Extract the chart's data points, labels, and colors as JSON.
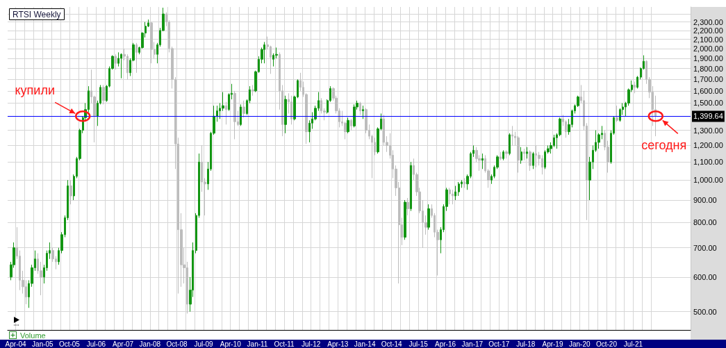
{
  "chart_data": {
    "type": "candlestick",
    "title": "RTSI Weekly",
    "log": true,
    "grid": true,
    "xlim": [
      "2004-01-10",
      "2023-02-06"
    ],
    "ylim": [
      454,
      2490
    ],
    "xticks": [
      {
        "value": "2004-04-01",
        "label": "Apr-04"
      },
      {
        "value": "2004-07-01",
        "label": null
      },
      {
        "value": "2004-10-01",
        "label": null
      },
      {
        "value": "2005-01-01",
        "label": "Jan-05"
      },
      {
        "value": "2005-04-01",
        "label": null
      },
      {
        "value": "2005-07-01",
        "label": null
      },
      {
        "value": "2005-10-01",
        "label": "Oct-05"
      },
      {
        "value": "2006-01-01",
        "label": null
      },
      {
        "value": "2006-04-01",
        "label": null
      },
      {
        "value": "2006-07-01",
        "label": "Jul-06"
      },
      {
        "value": "2006-10-01",
        "label": null
      },
      {
        "value": "2007-01-01",
        "label": null
      },
      {
        "value": "2007-04-01",
        "label": "Apr-07"
      },
      {
        "value": "2007-07-01",
        "label": null
      },
      {
        "value": "2007-10-01",
        "label": null
      },
      {
        "value": "2008-01-01",
        "label": "Jan-08"
      },
      {
        "value": "2008-04-01",
        "label": null
      },
      {
        "value": "2008-07-01",
        "label": null
      },
      {
        "value": "2008-10-01",
        "label": "Oct-08"
      },
      {
        "value": "2009-01-01",
        "label": null
      },
      {
        "value": "2009-04-01",
        "label": null
      },
      {
        "value": "2009-07-01",
        "label": "Jul-09"
      },
      {
        "value": "2009-10-01",
        "label": null
      },
      {
        "value": "2010-01-01",
        "label": null
      },
      {
        "value": "2010-04-01",
        "label": "Apr-10"
      },
      {
        "value": "2010-07-01",
        "label": null
      },
      {
        "value": "2010-10-01",
        "label": null
      },
      {
        "value": "2011-01-01",
        "label": "Jan-11"
      },
      {
        "value": "2011-04-01",
        "label": null
      },
      {
        "value": "2011-07-01",
        "label": null
      },
      {
        "value": "2011-10-01",
        "label": "Oct-11"
      },
      {
        "value": "2012-01-01",
        "label": null
      },
      {
        "value": "2012-04-01",
        "label": null
      },
      {
        "value": "2012-07-01",
        "label": "Jul-12"
      },
      {
        "value": "2012-10-01",
        "label": null
      },
      {
        "value": "2013-01-01",
        "label": null
      },
      {
        "value": "2013-04-01",
        "label": "Apr-13"
      },
      {
        "value": "2013-07-01",
        "label": null
      },
      {
        "value": "2013-10-01",
        "label": null
      },
      {
        "value": "2014-01-01",
        "label": "Jan-14"
      },
      {
        "value": "2014-04-01",
        "label": null
      },
      {
        "value": "2014-07-01",
        "label": null
      },
      {
        "value": "2014-10-01",
        "label": "Oct-14"
      },
      {
        "value": "2015-01-01",
        "label": null
      },
      {
        "value": "2015-04-01",
        "label": null
      },
      {
        "value": "2015-07-01",
        "label": "Jul-15"
      },
      {
        "value": "2015-10-01",
        "label": null
      },
      {
        "value": "2016-01-01",
        "label": null
      },
      {
        "value": "2016-04-01",
        "label": "Apr-16"
      },
      {
        "value": "2016-07-01",
        "label": null
      },
      {
        "value": "2016-10-01",
        "label": null
      },
      {
        "value": "2017-01-01",
        "label": "Jan-17"
      },
      {
        "value": "2017-04-01",
        "label": null
      },
      {
        "value": "2017-07-01",
        "label": null
      },
      {
        "value": "2017-10-01",
        "label": "Oct-17"
      },
      {
        "value": "2018-01-01",
        "label": null
      },
      {
        "value": "2018-04-01",
        "label": null
      },
      {
        "value": "2018-07-01",
        "label": "Jul-18"
      },
      {
        "value": "2018-10-01",
        "label": null
      },
      {
        "value": "2019-01-01",
        "label": null
      },
      {
        "value": "2019-04-01",
        "label": "Apr-19"
      },
      {
        "value": "2019-07-01",
        "label": null
      },
      {
        "value": "2019-10-01",
        "label": null
      },
      {
        "value": "2020-01-01",
        "label": "Jan-20"
      },
      {
        "value": "2020-04-01",
        "label": null
      },
      {
        "value": "2020-07-01",
        "label": null
      },
      {
        "value": "2020-10-01",
        "label": "Oct-20"
      },
      {
        "value": "2021-01-01",
        "label": null
      },
      {
        "value": "2021-04-01",
        "label": null
      },
      {
        "value": "2021-07-01",
        "label": "Jul-21"
      },
      {
        "value": "2021-10-01",
        "label": null
      },
      {
        "value": "2022-01-01",
        "label": null
      }
    ],
    "yticks": [
      {
        "value": 500,
        "label": "500.00"
      },
      {
        "value": 600,
        "label": "600.00"
      },
      {
        "value": 700,
        "label": "700.00"
      },
      {
        "value": 800,
        "label": "800.00"
      },
      {
        "value": 900,
        "label": "900.00"
      },
      {
        "value": 1000,
        "label": "1,000.00"
      },
      {
        "value": 1100,
        "label": "1,100.00"
      },
      {
        "value": 1200,
        "label": "1,200.00"
      },
      {
        "value": 1300,
        "label": "1,300.00"
      },
      {
        "value": 1400,
        "label": null
      },
      {
        "value": 1500,
        "label": "1,500.00"
      },
      {
        "value": 1600,
        "label": "1,600.00"
      },
      {
        "value": 1700,
        "label": "1,700.00"
      },
      {
        "value": 1800,
        "label": "1,800.00"
      },
      {
        "value": 1900,
        "label": "1,900.00"
      },
      {
        "value": 2000,
        "label": "2,000.00"
      },
      {
        "value": 2100,
        "label": "2,100.00"
      },
      {
        "value": 2200,
        "label": "2,200.00"
      },
      {
        "value": 2300,
        "label": "2,300.00"
      },
      {
        "value": 2400,
        "label": null
      }
    ],
    "ref_lines": [
      {
        "axis": "y",
        "value": 1399.64,
        "label": "1,399.64",
        "color": "#0000ff"
      }
    ],
    "annotations": [
      {
        "text": "купили",
        "x": "2006-02-15",
        "y": 1400
      },
      {
        "text": "сегодня",
        "x": "2022-02-15",
        "y": 1400
      },
      "Volume"
    ],
    "x": [
      "2004-02-15",
      "2004-03-15",
      "2004-04-15",
      "2004-05-15",
      "2004-06-15",
      "2004-07-15",
      "2004-08-15",
      "2004-09-15",
      "2004-10-15",
      "2004-11-15",
      "2004-12-15",
      "2005-01-15",
      "2005-02-15",
      "2005-03-15",
      "2005-04-15",
      "2005-05-15",
      "2005-06-15",
      "2005-07-15",
      "2005-08-15",
      "2005-09-15",
      "2005-10-15",
      "2005-11-15",
      "2005-12-15",
      "2006-01-15",
      "2006-02-15",
      "2006-03-15",
      "2006-04-15",
      "2006-05-15",
      "2006-06-15",
      "2006-07-15",
      "2006-08-15",
      "2006-09-15",
      "2006-10-15",
      "2006-11-15",
      "2006-12-15",
      "2007-01-15",
      "2007-02-15",
      "2007-03-15",
      "2007-04-15",
      "2007-05-15",
      "2007-06-15",
      "2007-07-15",
      "2007-08-15",
      "2007-09-15",
      "2007-10-15",
      "2007-11-15",
      "2007-12-15",
      "2008-01-15",
      "2008-02-15",
      "2008-03-15",
      "2008-04-15",
      "2008-05-15",
      "2008-06-15",
      "2008-07-15",
      "2008-08-15",
      "2008-09-15",
      "2008-10-15",
      "2008-11-15",
      "2008-12-15",
      "2009-01-15",
      "2009-02-15",
      "2009-03-15",
      "2009-04-15",
      "2009-05-15",
      "2009-06-15",
      "2009-07-15",
      "2009-08-15",
      "2009-09-15",
      "2009-10-15",
      "2009-11-15",
      "2009-12-15",
      "2010-01-15",
      "2010-02-15",
      "2010-03-15",
      "2010-04-15",
      "2010-05-15",
      "2010-06-15",
      "2010-07-15",
      "2010-08-15",
      "2010-09-15",
      "2010-10-15",
      "2010-11-15",
      "2010-12-15",
      "2011-01-15",
      "2011-02-15",
      "2011-03-15",
      "2011-04-15",
      "2011-05-15",
      "2011-06-15",
      "2011-07-15",
      "2011-08-15",
      "2011-09-15",
      "2011-10-15",
      "2011-11-15",
      "2011-12-15",
      "2012-01-15",
      "2012-02-15",
      "2012-03-15",
      "2012-04-15",
      "2012-05-15",
      "2012-06-15",
      "2012-07-15",
      "2012-08-15",
      "2012-09-15",
      "2012-10-15",
      "2012-11-15",
      "2012-12-15",
      "2013-01-15",
      "2013-02-15",
      "2013-03-15",
      "2013-04-15",
      "2013-05-15",
      "2013-06-15",
      "2013-07-15",
      "2013-08-15",
      "2013-09-15",
      "2013-10-15",
      "2013-11-15",
      "2013-12-15",
      "2014-01-15",
      "2014-02-15",
      "2014-03-15",
      "2014-04-15",
      "2014-05-15",
      "2014-06-15",
      "2014-07-15",
      "2014-08-15",
      "2014-09-15",
      "2014-10-15",
      "2014-11-15",
      "2014-12-15",
      "2015-01-15",
      "2015-02-15",
      "2015-03-15",
      "2015-04-15",
      "2015-05-15",
      "2015-06-15",
      "2015-07-15",
      "2015-08-15",
      "2015-09-15",
      "2015-10-15",
      "2015-11-15",
      "2015-12-15",
      "2016-01-15",
      "2016-02-15",
      "2016-03-15",
      "2016-04-15",
      "2016-05-15",
      "2016-06-15",
      "2016-07-15",
      "2016-08-15",
      "2016-09-15",
      "2016-10-15",
      "2016-11-15",
      "2016-12-15",
      "2017-01-15",
      "2017-02-15",
      "2017-03-15",
      "2017-04-15",
      "2017-05-15",
      "2017-06-15",
      "2017-07-15",
      "2017-08-15",
      "2017-09-15",
      "2017-10-15",
      "2017-11-15",
      "2017-12-15",
      "2018-01-15",
      "2018-02-15",
      "2018-03-15",
      "2018-04-15",
      "2018-05-15",
      "2018-06-15",
      "2018-07-15",
      "2018-08-15",
      "2018-09-15",
      "2018-10-15",
      "2018-11-15",
      "2018-12-15",
      "2019-01-15",
      "2019-02-15",
      "2019-03-15",
      "2019-04-15",
      "2019-05-15",
      "2019-06-15",
      "2019-07-15",
      "2019-08-15",
      "2019-09-15",
      "2019-10-15",
      "2019-11-15",
      "2019-12-15",
      "2020-01-15",
      "2020-02-15",
      "2020-03-15",
      "2020-04-15",
      "2020-05-15",
      "2020-06-15",
      "2020-07-15",
      "2020-08-15",
      "2020-09-15",
      "2020-10-15",
      "2020-11-15",
      "2020-12-15",
      "2021-01-15",
      "2021-02-15",
      "2021-03-15",
      "2021-04-15",
      "2021-05-15",
      "2021-06-15",
      "2021-07-15",
      "2021-08-15",
      "2021-09-15",
      "2021-10-15",
      "2021-11-15",
      "2021-12-15",
      "2022-01-15",
      "2022-02-15"
    ],
    "ohlc": [
      [
        600,
        650,
        590,
        640
      ],
      [
        640,
        720,
        630,
        700
      ],
      [
        700,
        780,
        660,
        670
      ],
      [
        670,
        690,
        560,
        590
      ],
      [
        590,
        620,
        550,
        570
      ],
      [
        570,
        590,
        520,
        540
      ],
      [
        540,
        590,
        510,
        580
      ],
      [
        580,
        640,
        570,
        630
      ],
      [
        630,
        690,
        620,
        660
      ],
      [
        660,
        680,
        610,
        620
      ],
      [
        620,
        650,
        545,
        600
      ],
      [
        600,
        640,
        580,
        630
      ],
      [
        630,
        690,
        620,
        680
      ],
      [
        680,
        720,
        660,
        690
      ],
      [
        690,
        700,
        650,
        660
      ],
      [
        660,
        670,
        625,
        650
      ],
      [
        650,
        700,
        640,
        690
      ],
      [
        690,
        760,
        680,
        750
      ],
      [
        750,
        830,
        740,
        820
      ],
      [
        820,
        1000,
        810,
        970
      ],
      [
        970,
        1000,
        880,
        920
      ],
      [
        920,
        1030,
        900,
        1020
      ],
      [
        1020,
        1130,
        1010,
        1120
      ],
      [
        1120,
        1310,
        1110,
        1300
      ],
      [
        1300,
        1400,
        1280,
        1390
      ],
      [
        1390,
        1500,
        1370,
        1450
      ],
      [
        1450,
        1640,
        1430,
        1600
      ],
      [
        1600,
        1790,
        1500,
        1550
      ],
      [
        1550,
        1560,
        1220,
        1400
      ],
      [
        1400,
        1520,
        1330,
        1500
      ],
      [
        1500,
        1650,
        1490,
        1630
      ],
      [
        1630,
        1650,
        1490,
        1520
      ],
      [
        1520,
        1650,
        1510,
        1640
      ],
      [
        1640,
        1820,
        1630,
        1800
      ],
      [
        1800,
        1930,
        1790,
        1920
      ],
      [
        1920,
        1940,
        1790,
        1850
      ],
      [
        1850,
        1960,
        1820,
        1900
      ],
      [
        1900,
        1950,
        1710,
        1940
      ],
      [
        1940,
        2000,
        1880,
        1920
      ],
      [
        1920,
        1940,
        1700,
        1760
      ],
      [
        1760,
        1900,
        1730,
        1880
      ],
      [
        1880,
        2060,
        1870,
        2040
      ],
      [
        2040,
        2060,
        1760,
        1960
      ],
      [
        1960,
        2020,
        1940,
        2010
      ],
      [
        2010,
        2180,
        2000,
        2170
      ],
      [
        2170,
        2300,
        2120,
        2250
      ],
      [
        2250,
        2330,
        2240,
        2290
      ],
      [
        2290,
        2300,
        1850,
        1990
      ],
      [
        1990,
        2070,
        1900,
        1940
      ],
      [
        1940,
        2060,
        1850,
        2040
      ],
      [
        2040,
        2230,
        2020,
        2200
      ],
      [
        2200,
        2480,
        2190,
        2400
      ],
      [
        2400,
        2420,
        2250,
        2300
      ],
      [
        2300,
        2320,
        1960,
        2000
      ],
      [
        2000,
        2020,
        1620,
        1700
      ],
      [
        1700,
        1720,
        1060,
        1210
      ],
      [
        1210,
        1250,
        550,
        770
      ],
      [
        770,
        840,
        570,
        640
      ],
      [
        640,
        700,
        580,
        630
      ],
      [
        630,
        650,
        495,
        520
      ],
      [
        520,
        600,
        500,
        560
      ],
      [
        560,
        720,
        540,
        690
      ],
      [
        690,
        840,
        680,
        830
      ],
      [
        830,
        1150,
        820,
        1100
      ],
      [
        1100,
        1200,
        940,
        990
      ],
      [
        990,
        1010,
        830,
        980
      ],
      [
        980,
        1100,
        950,
        1060
      ],
      [
        1060,
        1290,
        1050,
        1280
      ],
      [
        1280,
        1480,
        1270,
        1400
      ],
      [
        1400,
        1480,
        1360,
        1440
      ],
      [
        1440,
        1500,
        1380,
        1460
      ],
      [
        1460,
        1590,
        1440,
        1480
      ],
      [
        1480,
        1510,
        1340,
        1450
      ],
      [
        1450,
        1580,
        1440,
        1570
      ],
      [
        1570,
        1660,
        1530,
        1580
      ],
      [
        1580,
        1600,
        1240,
        1360
      ],
      [
        1360,
        1440,
        1330,
        1340
      ],
      [
        1340,
        1490,
        1330,
        1470
      ],
      [
        1470,
        1520,
        1390,
        1420
      ],
      [
        1420,
        1530,
        1410,
        1520
      ],
      [
        1520,
        1640,
        1500,
        1610
      ],
      [
        1610,
        1650,
        1560,
        1600
      ],
      [
        1600,
        1780,
        1590,
        1770
      ],
      [
        1770,
        1920,
        1760,
        1890
      ],
      [
        1890,
        2010,
        1850,
        1990
      ],
      [
        1990,
        2070,
        1850,
        2040
      ],
      [
        2040,
        2130,
        1990,
        2020
      ],
      [
        2020,
        2030,
        1750,
        1910
      ],
      [
        1890,
        1950,
        1820,
        1930
      ],
      [
        1930,
        2010,
        1900,
        1940
      ],
      [
        1940,
        1960,
        1450,
        1600
      ],
      [
        1600,
        1650,
        1260,
        1340
      ],
      [
        1340,
        1560,
        1280,
        1530
      ],
      [
        1530,
        1580,
        1420,
        1510
      ],
      [
        1510,
        1560,
        1340,
        1380
      ],
      [
        1380,
        1560,
        1370,
        1550
      ],
      [
        1550,
        1700,
        1540,
        1690
      ],
      [
        1690,
        1760,
        1600,
        1630
      ],
      [
        1630,
        1680,
        1550,
        1570
      ],
      [
        1570,
        1580,
        1210,
        1290
      ],
      [
        1290,
        1370,
        1220,
        1350
      ],
      [
        1350,
        1430,
        1310,
        1380
      ],
      [
        1380,
        1480,
        1370,
        1460
      ],
      [
        1460,
        1590,
        1440,
        1520
      ],
      [
        1520,
        1540,
        1420,
        1440
      ],
      [
        1440,
        1460,
        1370,
        1430
      ],
      [
        1430,
        1530,
        1420,
        1520
      ],
      [
        1520,
        1640,
        1510,
        1620
      ],
      [
        1620,
        1630,
        1520,
        1540
      ],
      [
        1540,
        1560,
        1420,
        1440
      ],
      [
        1440,
        1460,
        1320,
        1360
      ],
      [
        1360,
        1440,
        1330,
        1350
      ],
      [
        1350,
        1360,
        1240,
        1290
      ],
      [
        1290,
        1390,
        1280,
        1370
      ],
      [
        1370,
        1380,
        1300,
        1330
      ],
      [
        1330,
        1490,
        1320,
        1470
      ],
      [
        1470,
        1520,
        1450,
        1500
      ],
      [
        1500,
        1510,
        1410,
        1440
      ],
      [
        1440,
        1480,
        1380,
        1450
      ],
      [
        1450,
        1460,
        1280,
        1300
      ],
      [
        1300,
        1340,
        1240,
        1260
      ],
      [
        1260,
        1270,
        1010,
        1220
      ],
      [
        1220,
        1250,
        1140,
        1160
      ],
      [
        1160,
        1320,
        1150,
        1310
      ],
      [
        1310,
        1420,
        1300,
        1380
      ],
      [
        1380,
        1410,
        1200,
        1220
      ],
      [
        1220,
        1260,
        1160,
        1200
      ],
      [
        1200,
        1280,
        1120,
        1140
      ],
      [
        1140,
        1170,
        1010,
        1060
      ],
      [
        1060,
        1080,
        920,
        960
      ],
      [
        960,
        990,
        580,
        790
      ],
      [
        790,
        820,
        710,
        740
      ],
      [
        740,
        900,
        730,
        890
      ],
      [
        890,
        910,
        830,
        860
      ],
      [
        860,
        1100,
        850,
        1080
      ],
      [
        1080,
        1120,
        1000,
        1030
      ],
      [
        1030,
        1040,
        920,
        940
      ],
      [
        940,
        960,
        840,
        850
      ],
      [
        850,
        900,
        700,
        800
      ],
      [
        800,
        830,
        750,
        780
      ],
      [
        780,
        880,
        770,
        860
      ],
      [
        860,
        880,
        820,
        830
      ],
      [
        830,
        840,
        740,
        760
      ],
      [
        760,
        770,
        605,
        730
      ],
      [
        730,
        780,
        680,
        770
      ],
      [
        770,
        880,
        760,
        870
      ],
      [
        870,
        960,
        850,
        950
      ],
      [
        950,
        960,
        880,
        930
      ],
      [
        930,
        950,
        880,
        920
      ],
      [
        920,
        970,
        900,
        940
      ],
      [
        940,
        990,
        920,
        980
      ],
      [
        980,
        1000,
        960,
        990
      ],
      [
        990,
        1010,
        960,
        980
      ],
      [
        980,
        1030,
        950,
        1020
      ],
      [
        1020,
        1160,
        1010,
        1150
      ],
      [
        1150,
        1200,
        1130,
        1170
      ],
      [
        1170,
        1190,
        1100,
        1120
      ],
      [
        1120,
        1140,
        1050,
        1110
      ],
      [
        1110,
        1150,
        1060,
        1120
      ],
      [
        1120,
        1140,
        1040,
        1050
      ],
      [
        1050,
        1060,
        960,
        1000
      ],
      [
        1000,
        1030,
        980,
        1020
      ],
      [
        1020,
        1080,
        1010,
        1070
      ],
      [
        1070,
        1140,
        1060,
        1130
      ],
      [
        1130,
        1160,
        1110,
        1120
      ],
      [
        1120,
        1170,
        1110,
        1160
      ],
      [
        1160,
        1170,
        1120,
        1150
      ],
      [
        1150,
        1280,
        1140,
        1270
      ],
      [
        1270,
        1330,
        1200,
        1260
      ],
      [
        1260,
        1290,
        1200,
        1250
      ],
      [
        1250,
        1260,
        1040,
        1110
      ],
      [
        1110,
        1190,
        1090,
        1160
      ],
      [
        1160,
        1180,
        1110,
        1150
      ],
      [
        1150,
        1190,
        1120,
        1160
      ],
      [
        1160,
        1170,
        1050,
        1080
      ],
      [
        1080,
        1160,
        1060,
        1150
      ],
      [
        1150,
        1200,
        1070,
        1140
      ],
      [
        1140,
        1160,
        1080,
        1120
      ],
      [
        1120,
        1140,
        1030,
        1070
      ],
      [
        1070,
        1170,
        1060,
        1160
      ],
      [
        1160,
        1200,
        1150,
        1180
      ],
      [
        1180,
        1220,
        1150,
        1200
      ],
      [
        1200,
        1270,
        1190,
        1250
      ],
      [
        1250,
        1280,
        1180,
        1270
      ],
      [
        1270,
        1390,
        1260,
        1380
      ],
      [
        1380,
        1410,
        1330,
        1360
      ],
      [
        1360,
        1370,
        1250,
        1290
      ],
      [
        1290,
        1380,
        1270,
        1340
      ],
      [
        1340,
        1450,
        1320,
        1440
      ],
      [
        1440,
        1490,
        1420,
        1480
      ],
      [
        1480,
        1560,
        1470,
        1550
      ],
      [
        1550,
        1650,
        1500,
        1520
      ],
      [
        1520,
        1600,
        1300,
        1330
      ],
      [
        1330,
        1350,
        810,
        1000
      ],
      [
        1000,
        1130,
        900,
        1100
      ],
      [
        1100,
        1200,
        1060,
        1170
      ],
      [
        1170,
        1300,
        1160,
        1220
      ],
      [
        1220,
        1280,
        1180,
        1270
      ],
      [
        1270,
        1330,
        1240,
        1280
      ],
      [
        1280,
        1300,
        1170,
        1190
      ],
      [
        1190,
        1230,
        1040,
        1100
      ],
      [
        1100,
        1300,
        1090,
        1280
      ],
      [
        1280,
        1400,
        1270,
        1390
      ],
      [
        1390,
        1480,
        1360,
        1370
      ],
      [
        1370,
        1460,
        1360,
        1450
      ],
      [
        1450,
        1500,
        1410,
        1470
      ],
      [
        1470,
        1510,
        1400,
        1500
      ],
      [
        1500,
        1620,
        1480,
        1610
      ],
      [
        1610,
        1690,
        1590,
        1650
      ],
      [
        1650,
        1680,
        1580,
        1630
      ],
      [
        1630,
        1730,
        1620,
        1720
      ],
      [
        1720,
        1810,
        1700,
        1800
      ],
      [
        1800,
        1930,
        1790,
        1870
      ],
      [
        1870,
        1880,
        1660,
        1700
      ],
      [
        1700,
        1720,
        1540,
        1590
      ],
      [
        1590,
        1640,
        1330,
        1450
      ],
      [
        1450,
        1560,
        1260,
        1400
      ]
    ],
    "colors": [
      "#139613",
      "#139613",
      "#bdbdbd",
      "#bdbdbd",
      "#bdbdbd",
      "#bdbdbd",
      "#139613",
      "#139613",
      "#139613",
      "#bdbdbd",
      "#bdbdbd",
      "#139613",
      "#139613",
      "#139613",
      "#bdbdbd",
      "#bdbdbd",
      "#139613",
      "#139613",
      "#139613",
      "#139613",
      "#bdbdbd",
      "#139613",
      "#139613",
      "#139613",
      "#139613",
      "#139613",
      "#139613",
      "#bdbdbd",
      "#bdbdbd",
      "#139613",
      "#139613",
      "#bdbdbd",
      "#139613",
      "#139613",
      "#139613",
      "#bdbdbd",
      "#139613",
      "#139613",
      "#bdbdbd",
      "#bdbdbd",
      "#139613",
      "#139613",
      "#bdbdbd",
      "#139613",
      "#139613",
      "#139613",
      "#139613",
      "#bdbdbd",
      "#bdbdbd",
      "#139613",
      "#139613",
      "#139613",
      "#bdbdbd",
      "#bdbdbd",
      "#bdbdbd",
      "#bdbdbd",
      "#bdbdbd",
      "#bdbdbd",
      "#bdbdbd",
      "#bdbdbd",
      "#139613",
      "#139613",
      "#139613",
      "#139613",
      "#bdbdbd",
      "#bdbdbd",
      "#139613",
      "#139613",
      "#139613",
      "#139613",
      "#139613",
      "#139613",
      "#bdbdbd",
      "#139613",
      "#139613",
      "#bdbdbd",
      "#bdbdbd",
      "#139613",
      "#bdbdbd",
      "#139613",
      "#139613",
      "#bdbdbd",
      "#139613",
      "#139613",
      "#139613",
      "#139613",
      "#bdbdbd",
      "#bdbdbd",
      "#139613",
      "#139613",
      "#bdbdbd",
      "#bdbdbd",
      "#139613",
      "#bdbdbd",
      "#bdbdbd",
      "#139613",
      "#139613",
      "#bdbdbd",
      "#bdbdbd",
      "#bdbdbd",
      "#139613",
      "#139613",
      "#139613",
      "#139613",
      "#bdbdbd",
      "#bdbdbd",
      "#139613",
      "#139613",
      "#bdbdbd",
      "#bdbdbd",
      "#bdbdbd",
      "#bdbdbd",
      "#bdbdbd",
      "#139613",
      "#bdbdbd",
      "#139613",
      "#139613",
      "#bdbdbd",
      "#139613",
      "#bdbdbd",
      "#bdbdbd",
      "#bdbdbd",
      "#bdbdbd",
      "#139613",
      "#139613",
      "#bdbdbd",
      "#bdbdbd",
      "#bdbdbd",
      "#bdbdbd",
      "#bdbdbd",
      "#bdbdbd",
      "#bdbdbd",
      "#139613",
      "#bdbdbd",
      "#139613",
      "#bdbdbd",
      "#bdbdbd",
      "#bdbdbd",
      "#bdbdbd",
      "#bdbdbd",
      "#139613",
      "#bdbdbd",
      "#bdbdbd",
      "#bdbdbd",
      "#139613",
      "#139613",
      "#139613",
      "#bdbdbd",
      "#bdbdbd",
      "#139613",
      "#139613",
      "#139613",
      "#bdbdbd",
      "#139613",
      "#139613",
      "#139613",
      "#bdbdbd",
      "#bdbdbd",
      "#139613",
      "#bdbdbd",
      "#bdbdbd",
      "#139613",
      "#139613",
      "#139613",
      "#bdbdbd",
      "#139613",
      "#bdbdbd",
      "#139613",
      "#bdbdbd",
      "#bdbdbd",
      "#bdbdbd",
      "#139613",
      "#bdbdbd",
      "#139613",
      "#bdbdbd",
      "#139613",
      "#bdbdbd",
      "#bdbdbd",
      "#bdbdbd",
      "#139613",
      "#139613",
      "#139613",
      "#139613",
      "#139613",
      "#139613",
      "#bdbdbd",
      "#bdbdbd",
      "#139613",
      "#139613",
      "#139613",
      "#139613",
      "#bdbdbd",
      "#bdbdbd",
      "#bdbdbd",
      "#139613",
      "#139613",
      "#139613",
      "#139613",
      "#139613",
      "#bdbdbd",
      "#bdbdbd",
      "#139613",
      "#139613",
      "#bdbdbd",
      "#139613",
      "#139613",
      "#139613",
      "#139613",
      "#139613",
      "#bdbdbd",
      "#139613",
      "#139613",
      "#139613",
      "#bdbdbd",
      "#bdbdbd",
      "#bdbdbd",
      "#bdbdbd"
    ]
  }
}
